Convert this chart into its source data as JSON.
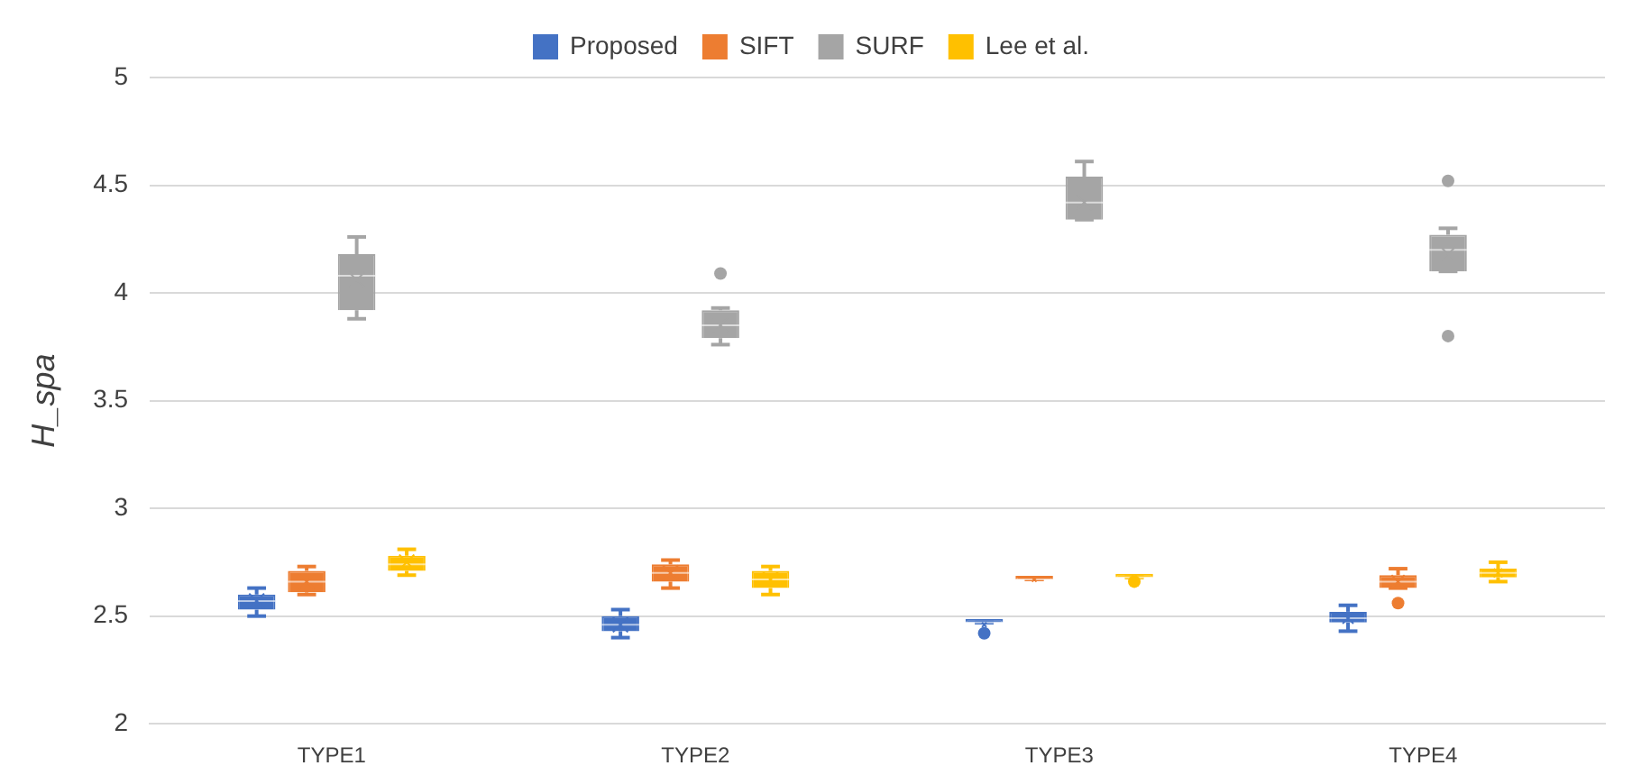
{
  "chart_data": {
    "type": "box",
    "ylabel": "H_spa",
    "categories": [
      "TYPE1",
      "TYPE2",
      "TYPE3",
      "TYPE4"
    ],
    "ylim": [
      2,
      5
    ],
    "yticks": [
      2,
      2.5,
      3,
      3.5,
      4,
      4.5,
      5
    ],
    "grid": "y",
    "legend": "top",
    "series": [
      {
        "name": "Proposed",
        "color": "#4472c4",
        "boxes": [
          {
            "low": 2.5,
            "q1": 2.53,
            "median": 2.57,
            "q3": 2.6,
            "high": 2.63,
            "mean": 2.57
          },
          {
            "low": 2.4,
            "q1": 2.43,
            "median": 2.46,
            "q3": 2.5,
            "high": 2.53,
            "mean": 2.46
          },
          {
            "low": 2.47,
            "q1": 2.47,
            "median": 2.47,
            "q3": 2.47,
            "high": 2.47,
            "mean": 2.46,
            "outliers": [
              2.42
            ]
          },
          {
            "low": 2.43,
            "q1": 2.47,
            "median": 2.49,
            "q3": 2.52,
            "high": 2.55,
            "mean": 2.49
          }
        ]
      },
      {
        "name": "SIFT",
        "color": "#ed7d31",
        "boxes": [
          {
            "low": 2.6,
            "q1": 2.61,
            "median": 2.66,
            "q3": 2.71,
            "high": 2.73,
            "mean": 2.66
          },
          {
            "low": 2.63,
            "q1": 2.66,
            "median": 2.7,
            "q3": 2.74,
            "high": 2.76,
            "mean": 2.7
          },
          {
            "low": 2.67,
            "q1": 2.67,
            "median": 2.67,
            "q3": 2.67,
            "high": 2.67,
            "mean": 2.67
          },
          {
            "low": 2.63,
            "q1": 2.63,
            "median": 2.66,
            "q3": 2.69,
            "high": 2.72,
            "mean": 2.66,
            "outliers": [
              2.56
            ]
          }
        ]
      },
      {
        "name": "SURF",
        "color": "#a5a5a5",
        "boxes": [
          {
            "low": 3.88,
            "q1": 3.92,
            "median": 4.08,
            "q3": 4.18,
            "high": 4.26,
            "mean": 4.06
          },
          {
            "low": 3.76,
            "q1": 3.79,
            "median": 3.85,
            "q3": 3.92,
            "high": 3.93,
            "mean": 3.85,
            "outliers": [
              4.09
            ]
          },
          {
            "low": 4.34,
            "q1": 4.34,
            "median": 4.42,
            "q3": 4.54,
            "high": 4.61,
            "mean": 4.42
          },
          {
            "low": 4.1,
            "q1": 4.1,
            "median": 4.2,
            "q3": 4.27,
            "high": 4.3,
            "mean": 4.18,
            "outliers": [
              4.52,
              3.8
            ]
          }
        ]
      },
      {
        "name": "Lee et al.",
        "color": "#ffc000",
        "boxes": [
          {
            "low": 2.69,
            "q1": 2.71,
            "median": 2.74,
            "q3": 2.78,
            "high": 2.81,
            "mean": 2.75
          },
          {
            "low": 2.6,
            "q1": 2.63,
            "median": 2.67,
            "q3": 2.71,
            "high": 2.73,
            "mean": 2.67
          },
          {
            "low": 2.68,
            "q1": 2.68,
            "median": 2.68,
            "q3": 2.68,
            "high": 2.68,
            "mean": 2.68,
            "outliers": [
              2.66
            ]
          },
          {
            "low": 2.66,
            "q1": 2.68,
            "median": 2.7,
            "q3": 2.72,
            "high": 2.75,
            "mean": 2.7
          }
        ]
      }
    ]
  }
}
